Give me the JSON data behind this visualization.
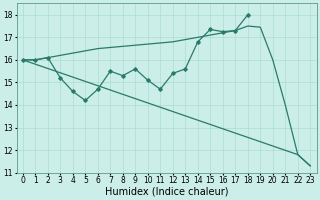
{
  "xlabel": "Humidex (Indice chaleur)",
  "bg_color": "#cceee8",
  "grid_color": "#aaddcc",
  "line_color": "#2a7a6a",
  "line1_x": [
    0,
    1,
    2,
    3,
    4,
    5,
    6,
    7,
    8,
    9,
    10,
    11,
    12,
    13,
    14,
    15,
    16,
    17,
    18,
    19,
    20,
    21,
    22,
    23
  ],
  "line1_y": [
    16.0,
    16.0,
    16.1,
    16.2,
    16.3,
    16.4,
    16.5,
    16.55,
    16.6,
    16.65,
    16.7,
    16.75,
    16.8,
    16.9,
    17.0,
    17.1,
    17.2,
    17.3,
    17.5,
    17.45,
    16.0,
    14.0,
    11.8,
    11.3
  ],
  "line2_x": [
    0,
    1,
    2,
    3,
    4,
    5,
    6,
    7,
    8,
    9,
    10,
    11,
    12,
    13,
    14,
    15,
    16,
    17,
    18
  ],
  "line2_y": [
    16.0,
    16.0,
    16.1,
    15.2,
    14.6,
    14.2,
    14.7,
    15.5,
    15.3,
    15.6,
    15.1,
    14.7,
    15.4,
    15.6,
    16.8,
    17.35,
    17.25,
    17.3,
    18.0
  ],
  "line3_x": [
    0,
    22,
    23
  ],
  "line3_y": [
    16.0,
    11.8,
    11.3
  ],
  "xlim": [
    -0.5,
    23.5
  ],
  "ylim": [
    11,
    18.5
  ],
  "yticks": [
    11,
    12,
    13,
    14,
    15,
    16,
    17,
    18
  ],
  "xticks": [
    0,
    1,
    2,
    3,
    4,
    5,
    6,
    7,
    8,
    9,
    10,
    11,
    12,
    13,
    14,
    15,
    16,
    17,
    18,
    19,
    20,
    21,
    22,
    23
  ],
  "tick_fontsize": 5.5,
  "xlabel_fontsize": 7
}
